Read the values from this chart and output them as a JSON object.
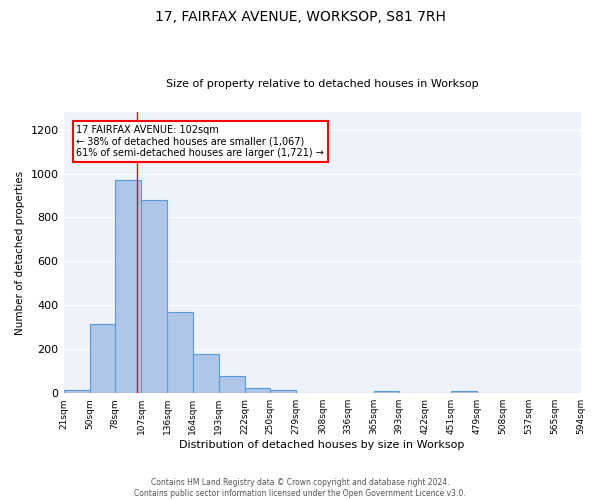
{
  "title": "17, FAIRFAX AVENUE, WORKSOP, S81 7RH",
  "subtitle": "Size of property relative to detached houses in Worksop",
  "xlabel": "Distribution of detached houses by size in Worksop",
  "ylabel": "Number of detached properties",
  "footnote1": "Contains HM Land Registry data © Crown copyright and database right 2024.",
  "footnote2": "Contains public sector information licensed under the Open Government Licence v3.0.",
  "annotation_line1": "17 FAIRFAX AVENUE: 102sqm",
  "annotation_line2": "← 38% of detached houses are smaller (1,067)",
  "annotation_line3": "61% of semi-detached houses are larger (1,721) →",
  "bar_edges": [
    21,
    50,
    78,
    107,
    136,
    164,
    193,
    222,
    250,
    279,
    308,
    336,
    365,
    393,
    422,
    451,
    479,
    508,
    537,
    565,
    594
  ],
  "bar_heights": [
    15,
    315,
    970,
    880,
    370,
    180,
    80,
    25,
    15,
    0,
    0,
    0,
    10,
    0,
    0,
    10,
    0,
    0,
    0,
    0
  ],
  "bar_color": "#aec6e8",
  "bar_edge_color": "#5b9bd5",
  "red_line_x": 102,
  "ylim": [
    0,
    1280
  ],
  "yticks": [
    0,
    200,
    400,
    600,
    800,
    1000,
    1200
  ],
  "background_color": "#eef3fb"
}
